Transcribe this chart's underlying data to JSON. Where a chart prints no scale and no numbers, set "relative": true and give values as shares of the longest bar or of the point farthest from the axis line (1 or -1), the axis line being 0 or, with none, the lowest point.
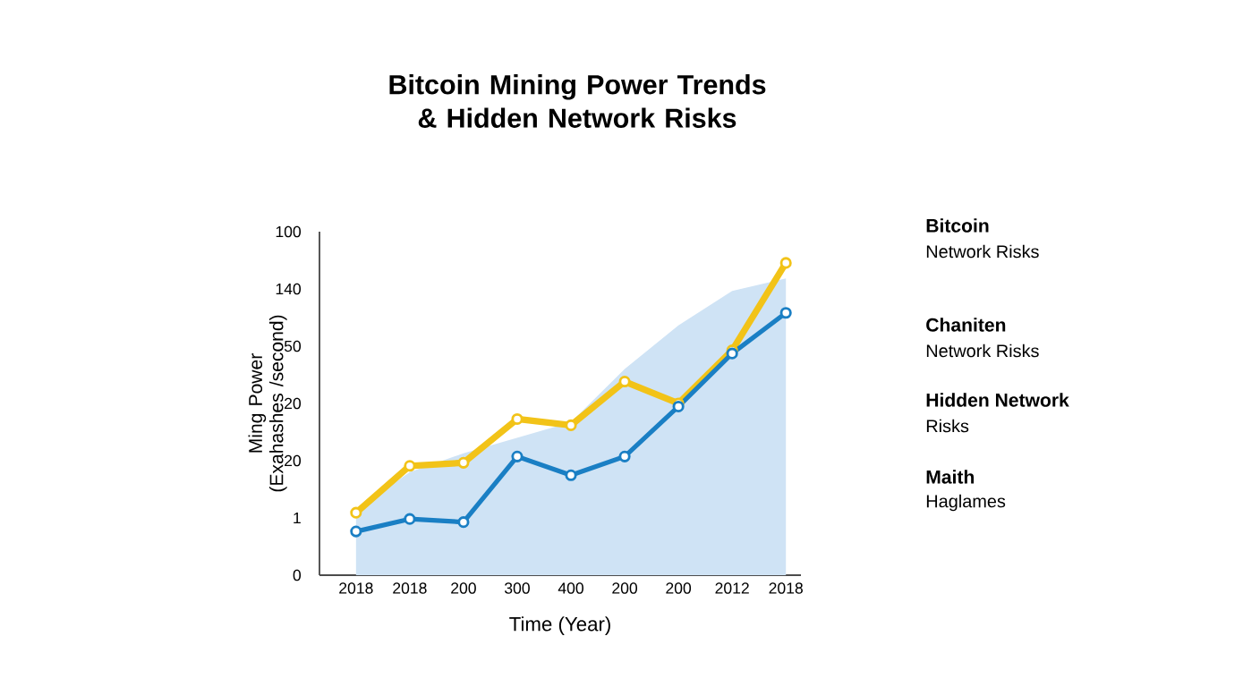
{
  "chart_data": {
    "type": "line",
    "relative": true,
    "title": "Bitcoin Mining Power Trends & Hidden Network Risks",
    "xlabel": "Time (Year)",
    "ylabel": "Ming Power (Exahashes /second)",
    "categories": [
      "2018",
      "2018",
      "200",
      "300",
      "400",
      "200",
      "200",
      "2012",
      "2018"
    ],
    "series": [
      {
        "type": "area",
        "color": "#cfe3f5",
        "values": [
          0.21,
          0.33,
          0.39,
          0.44,
          0.49,
          0.66,
          0.8,
          0.91,
          0.95
        ]
      },
      {
        "color": "#f2c318",
        "marker": "circle",
        "values": [
          0.2,
          0.35,
          0.36,
          0.5,
          0.48,
          0.62,
          0.55,
          0.72,
          1
        ]
      },
      {
        "color": "#1a7fc4",
        "marker": "circle",
        "values": [
          0.14,
          0.18,
          0.17,
          0.38,
          0.32,
          0.38,
          0.54,
          0.71,
          0.84
        ]
      }
    ],
    "annotations": [
      "Bitcoin",
      "Network Risks",
      "Chaniten",
      "Network Risks",
      "Hidden Network",
      "Risks",
      "Maith",
      "Haglames",
      "0",
      "1",
      "20",
      "20",
      "50",
      "140",
      "100"
    ]
  }
}
